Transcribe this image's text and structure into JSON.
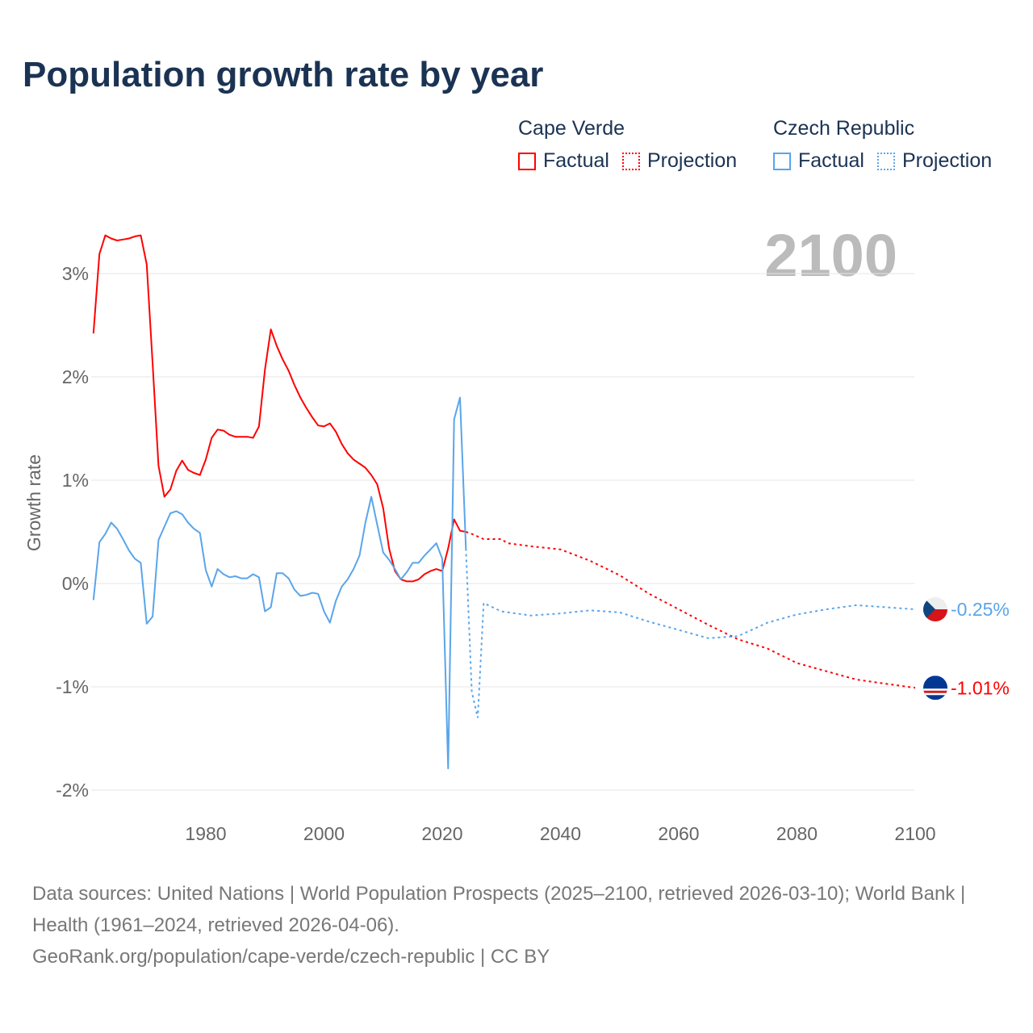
{
  "title": "Population growth rate by year",
  "legend": {
    "groups": [
      {
        "country": "Cape Verde",
        "color": "#ff0000",
        "factual": "Factual",
        "projection": "Projection"
      },
      {
        "country": "Czech Republic",
        "color": "#5aa5ea",
        "factual": "Factual",
        "projection": "Projection"
      }
    ]
  },
  "year_label": "2100",
  "footer": {
    "sources": "Data sources: United Nations | World Population Prospects (2025–2100, retrieved 2026-03-10); World Bank | Health (1961–2024, retrieved 2026-04-06).",
    "credit": "GeoRank.org/population/cape-verde/czech-republic | CC BY"
  },
  "chart_data": {
    "type": "line",
    "title": "Population growth rate by year",
    "xlabel": "",
    "ylabel": "Growth rate",
    "xlim": [
      1961,
      2100
    ],
    "ylim": [
      -2.2,
      3.6
    ],
    "x_ticks": [
      "1980",
      "2000",
      "2020",
      "2040",
      "2060",
      "2080",
      "2100"
    ],
    "x_tick_values": [
      1980,
      2000,
      2020,
      2040,
      2060,
      2080,
      2100
    ],
    "y_ticks": [
      "3%",
      "2%",
      "1%",
      "0%",
      "-1%",
      "-2%"
    ],
    "y_tick_values": [
      3,
      2,
      1,
      0,
      -1,
      -2
    ],
    "grid": true,
    "legend_position": "top-right",
    "series": [
      {
        "name": "Cape Verde",
        "color": "#ff0000",
        "end_label": "-1.01%",
        "factual": {
          "start_year": 1961,
          "values": [
            2.42,
            3.19,
            3.37,
            3.34,
            3.32,
            3.33,
            3.34,
            3.36,
            3.37,
            3.09,
            2.13,
            1.14,
            0.84,
            0.91,
            1.09,
            1.19,
            1.1,
            1.07,
            1.05,
            1.2,
            1.41,
            1.49,
            1.48,
            1.44,
            1.42,
            1.42,
            1.42,
            1.41,
            1.52,
            2.07,
            2.46,
            2.3,
            2.17,
            2.06,
            1.92,
            1.8,
            1.7,
            1.61,
            1.53,
            1.52,
            1.55,
            1.47,
            1.35,
            1.26,
            1.2,
            1.16,
            1.12,
            1.05,
            0.96,
            0.73,
            0.34,
            0.12,
            0.04,
            0.02,
            0.02,
            0.04,
            0.09,
            0.12,
            0.14,
            0.12,
            0.34,
            0.62,
            0.51,
            0.5
          ]
        },
        "projection": {
          "x": [
            2024,
            2025,
            2027,
            2030,
            2031,
            2035,
            2040,
            2045,
            2050,
            2055,
            2060,
            2065,
            2070,
            2075,
            2080,
            2085,
            2090,
            2095,
            2100
          ],
          "values": [
            0.5,
            0.48,
            0.43,
            0.43,
            0.39,
            0.36,
            0.33,
            0.22,
            0.08,
            -0.1,
            -0.25,
            -0.4,
            -0.54,
            -0.63,
            -0.77,
            -0.85,
            -0.93,
            -0.97,
            -1.01
          ]
        }
      },
      {
        "name": "Czech Republic",
        "color": "#5aa5ea",
        "end_label": "-0.25%",
        "factual": {
          "start_year": 1961,
          "values": [
            -0.16,
            0.4,
            0.48,
            0.59,
            0.53,
            0.43,
            0.32,
            0.24,
            0.2,
            -0.39,
            -0.32,
            0.42,
            0.55,
            0.68,
            0.7,
            0.67,
            0.59,
            0.53,
            0.49,
            0.13,
            -0.03,
            0.14,
            0.09,
            0.06,
            0.07,
            0.05,
            0.05,
            0.09,
            0.06,
            -0.27,
            -0.23,
            0.1,
            0.1,
            0.05,
            -0.06,
            -0.12,
            -0.11,
            -0.09,
            -0.1,
            -0.27,
            -0.38,
            -0.17,
            -0.03,
            0.04,
            0.14,
            0.27,
            0.59,
            0.84,
            0.57,
            0.3,
            0.23,
            0.14,
            0.04,
            0.11,
            0.2,
            0.2,
            0.27,
            0.33,
            0.39,
            0.24,
            -1.79,
            1.59,
            1.8,
            0.34
          ]
        },
        "projection": {
          "x": [
            2024,
            2025,
            2026,
            2027,
            2030,
            2035,
            2040,
            2045,
            2050,
            2055,
            2060,
            2065,
            2070,
            2075,
            2080,
            2085,
            2090,
            2095,
            2100
          ],
          "values": [
            0.34,
            -1.05,
            -1.3,
            -0.19,
            -0.27,
            -0.31,
            -0.29,
            -0.26,
            -0.28,
            -0.37,
            -0.45,
            -0.53,
            -0.51,
            -0.38,
            -0.3,
            -0.25,
            -0.21,
            -0.23,
            -0.25
          ]
        }
      }
    ]
  }
}
